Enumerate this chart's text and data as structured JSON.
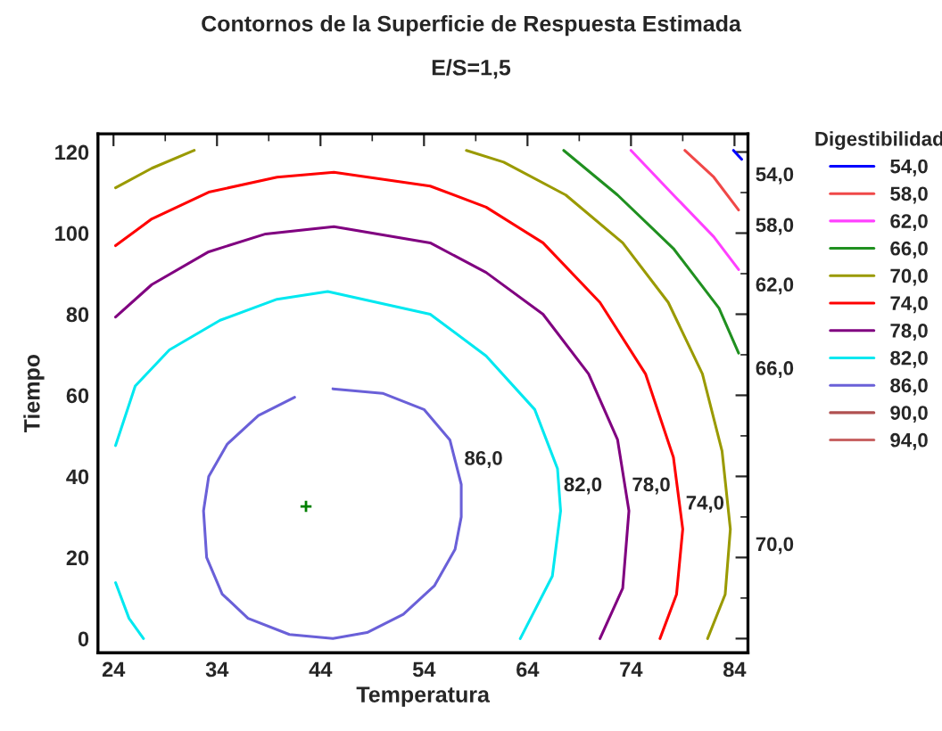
{
  "chart_data": {
    "type": "line",
    "title": "Contornos de la Superficie de Respuesta Estimada",
    "subtitle": "E/S=1,5",
    "xlabel": "Temperatura",
    "ylabel": "Tiempo",
    "legend_title": "Digestibilidad",
    "xlim": [
      22.5,
      85.3
    ],
    "ylim": [
      -3.5,
      124.5
    ],
    "xticks": [
      24,
      34,
      44,
      54,
      64,
      74,
      84
    ],
    "yticks": [
      0,
      20,
      40,
      60,
      80,
      100,
      120
    ],
    "legend": "right",
    "grid": false,
    "marker": "none",
    "line_style": "solid",
    "series": [
      {
        "name": "54,0",
        "color": "#0000ff",
        "x": [
          83.9,
          84.7
        ],
        "values": [
          120.4,
          118.2
        ]
      },
      {
        "name": "58,0",
        "color": "#f04848",
        "x": [
          79.2,
          82,
          84.4
        ],
        "values": [
          120.4,
          113.8,
          105.7
        ]
      },
      {
        "name": "62,0",
        "color": "#ff40ff",
        "x": [
          74,
          78.1,
          82,
          84.4
        ],
        "values": [
          120.4,
          109.4,
          99.1,
          91
        ]
      },
      {
        "name": "66,0",
        "color": "#209020",
        "x": [
          67.5,
          72.7,
          78.1,
          82.5,
          84.4
        ],
        "values": [
          120.4,
          109.4,
          96.2,
          81.5,
          70.4
        ]
      },
      {
        "name": "70,0",
        "color": "#9a9a00",
        "x": [
          24.2,
          27.7,
          31.8,
          null,
          58.1,
          61.7,
          67.7,
          73.2,
          77.6,
          80.9,
          82.8,
          83.6,
          83.1,
          81.4
        ],
        "values": [
          111.2,
          116,
          120.4,
          null,
          120.4,
          117.5,
          109.4,
          97.6,
          82.9,
          65.3,
          46.2,
          27,
          10.9,
          0
        ]
      },
      {
        "name": "74,0",
        "color": "#ff0000",
        "x": [
          24.2,
          27.7,
          33.2,
          39.8,
          45.3,
          54.6,
          60,
          65.5,
          71,
          75.4,
          78.1,
          79,
          78.4,
          76.8
        ],
        "values": [
          96.9,
          103.5,
          110.1,
          113.8,
          115,
          111.6,
          106.4,
          97.6,
          82.9,
          65.3,
          44.7,
          27,
          10.9,
          0
        ]
      },
      {
        "name": "78,0",
        "color": "#800080",
        "x": [
          24.2,
          27.7,
          33.2,
          38.7,
          45.3,
          54.6,
          60,
          65.5,
          69.9,
          72.7,
          73.8,
          73.2,
          71
        ],
        "values": [
          79.3,
          87.3,
          95.4,
          99.8,
          101.6,
          97.6,
          90.3,
          80,
          65.3,
          49.1,
          31.5,
          12.4,
          0
        ]
      },
      {
        "name": "82,0",
        "color": "#00e8f0",
        "x": [
          24.2,
          26.1,
          29.4,
          34.3,
          39.8,
          44.7,
          54.6,
          60,
          64.7,
          66.9,
          67.2,
          66.4,
          63.3,
          null,
          24.2,
          25.5,
          26.9
        ],
        "values": [
          47.6,
          62.3,
          71.2,
          78.5,
          83.7,
          85.6,
          80,
          69.7,
          56.5,
          41.9,
          31.5,
          15.4,
          0,
          null,
          13.8,
          5,
          0
        ]
      },
      {
        "name": "86,0",
        "color": "#6a60d8",
        "x": [
          45.2,
          50,
          54,
          56.5,
          57.6,
          57.6,
          57,
          55,
          52,
          48.5,
          45.2,
          41,
          37,
          34.5,
          33,
          32.7,
          33.2,
          35,
          38,
          41.5
        ],
        "values": [
          61.6,
          60.5,
          56.5,
          49,
          38,
          30,
          22,
          13,
          6,
          1.5,
          0,
          1,
          5,
          11,
          20,
          31.5,
          40,
          48,
          55,
          59.5
        ]
      },
      {
        "name": "90,0",
        "color": "#b05050"
      },
      {
        "name": "94,0",
        "color": "#c86464"
      },
      {
        "type": "scatter",
        "color": "#008000",
        "marker": "cross",
        "x": [
          42.6
        ],
        "values": [
          32.6
        ]
      }
    ]
  }
}
